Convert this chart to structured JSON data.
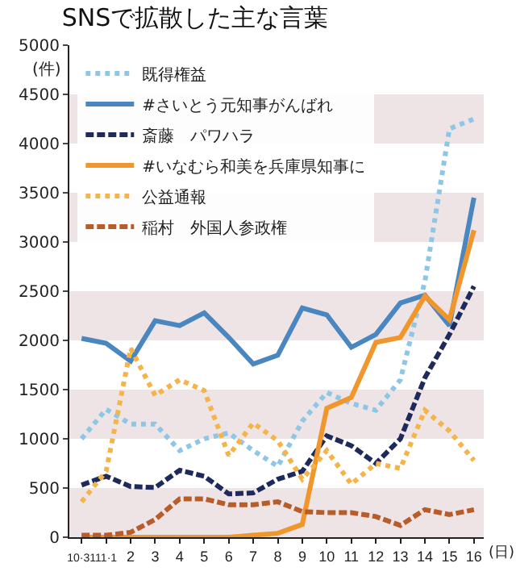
{
  "chart_data": {
    "type": "line",
    "title": "SNSで拡散した主な言葉",
    "ylabel": "(件)",
    "xlabel": "(日)",
    "categories": [
      "10·31",
      "11·1",
      "2",
      "3",
      "4",
      "5",
      "6",
      "7",
      "8",
      "9",
      "10",
      "11",
      "12",
      "13",
      "14",
      "15",
      "16"
    ],
    "series": [
      {
        "name": "既得権益",
        "color": "#8ec6e6",
        "line_style": "dotted",
        "values": [
          1000,
          1300,
          1150,
          1150,
          880,
          1000,
          1060,
          880,
          720,
          1180,
          1470,
          1360,
          1290,
          1600,
          2600,
          4150,
          4250
        ]
      },
      {
        "name": "#さいとう元知事がんばれ",
        "color": "#4a86c0",
        "line_style": "solid",
        "values": [
          2020,
          1970,
          1790,
          2200,
          2150,
          2280,
          2030,
          1760,
          1850,
          2330,
          2260,
          1930,
          2060,
          2380,
          2460,
          2150,
          3450
        ]
      },
      {
        "name": "斎藤　パワハラ",
        "color": "#1f2a5c",
        "line_style": "dashed",
        "values": [
          530,
          620,
          515,
          505,
          680,
          620,
          440,
          450,
          590,
          670,
          1030,
          930,
          750,
          1000,
          1620,
          2060,
          2550
        ]
      },
      {
        "name": "#いなむら和美を兵庫県知事に",
        "color": "#f0962c",
        "line_style": "solid",
        "values": [
          0,
          0,
          0,
          0,
          0,
          0,
          0,
          20,
          40,
          130,
          1310,
          1420,
          1980,
          2030,
          2450,
          2210,
          3120
        ]
      },
      {
        "name": "公益通報",
        "color": "#f5b44a",
        "line_style": "dotted",
        "values": [
          360,
          670,
          1920,
          1440,
          1600,
          1490,
          830,
          1160,
          980,
          590,
          880,
          540,
          750,
          700,
          1290,
          1080,
          780
        ]
      },
      {
        "name": "稲村　外国人参政権",
        "color": "#b85c2a",
        "line_style": "dashed",
        "values": [
          20,
          20,
          50,
          180,
          390,
          390,
          330,
          330,
          360,
          260,
          250,
          250,
          210,
          120,
          280,
          230,
          280
        ]
      }
    ],
    "ylim": [
      0,
      5000
    ],
    "yticks": [
      0,
      500,
      1000,
      1500,
      2000,
      2500,
      3000,
      3500,
      4000,
      4500,
      5000
    ],
    "bands": [
      {
        "axis": "y",
        "from": 0,
        "to": 500,
        "color": "#eee4e6"
      },
      {
        "axis": "y",
        "from": 1000,
        "to": 1500,
        "color": "#eee4e6"
      },
      {
        "axis": "y",
        "from": 2000,
        "to": 2500,
        "color": "#eee4e6"
      },
      {
        "axis": "y",
        "from": 3000,
        "to": 3500,
        "color": "#eee4e6"
      },
      {
        "axis": "y",
        "from": 4000,
        "to": 4500,
        "color": "#eee4e6"
      }
    ],
    "grid": false,
    "legend": "top left",
    "marker": "none"
  }
}
